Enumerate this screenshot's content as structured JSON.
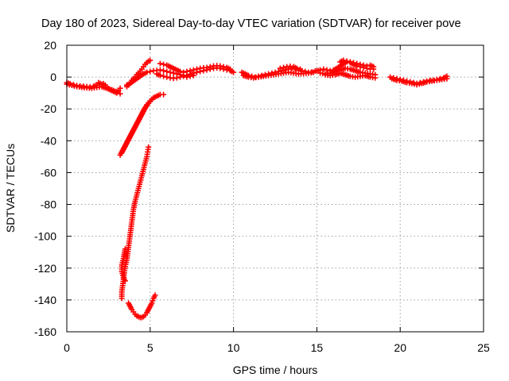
{
  "chart_data": {
    "type": "scatter",
    "title": "Day 180 of 2023, Sidereal Day-to-day VTEC variation (SDTVAR) for receiver pove",
    "xlabel": "GPS time / hours",
    "ylabel": "SDTVAR / TECUs",
    "xlim": [
      0,
      25
    ],
    "ylim": [
      -160,
      20
    ],
    "xticks": [
      "0",
      "5",
      "10",
      "15",
      "20",
      "25"
    ],
    "yticks": [
      "20",
      "0",
      "-20",
      "-40",
      "-60",
      "-80",
      "-100",
      "-120",
      "-140",
      "-160"
    ],
    "grid": true,
    "marker": "plus",
    "series_color": "#ff0000",
    "segments": [
      [
        [
          0.0,
          -3.5
        ],
        [
          0.2,
          -4.2
        ],
        [
          0.4,
          -4.8
        ],
        [
          0.6,
          -5.3
        ],
        [
          0.8,
          -5.6
        ],
        [
          1.0,
          -5.8
        ],
        [
          1.2,
          -6.0
        ],
        [
          1.4,
          -6.2
        ],
        [
          1.6,
          -5.8
        ],
        [
          1.8,
          -5.0
        ],
        [
          1.9,
          -3.5
        ],
        [
          2.0,
          -4.0
        ],
        [
          2.1,
          -4.5
        ],
        [
          2.2,
          -4.2
        ],
        [
          2.3,
          -5.0
        ],
        [
          2.4,
          -6.2
        ],
        [
          2.5,
          -7.2
        ],
        [
          2.6,
          -7.8
        ],
        [
          2.7,
          -8.0
        ],
        [
          2.8,
          -8.5
        ],
        [
          2.9,
          -9.0
        ],
        [
          3.0,
          -9.2
        ],
        [
          3.1,
          -8.5
        ],
        [
          3.2,
          -7.0
        ]
      ],
      [
        [
          0.0,
          -4.5
        ],
        [
          0.3,
          -5.2
        ],
        [
          0.6,
          -6.0
        ],
        [
          0.9,
          -6.4
        ],
        [
          1.2,
          -6.8
        ],
        [
          1.5,
          -7.0
        ],
        [
          1.8,
          -6.5
        ],
        [
          2.1,
          -6.0
        ],
        [
          2.4,
          -7.0
        ],
        [
          2.7,
          -8.5
        ],
        [
          3.0,
          -10.0
        ],
        [
          3.2,
          -10.5
        ]
      ],
      [
        [
          3.6,
          -6.0
        ],
        [
          3.7,
          -5.0
        ],
        [
          3.8,
          -3.5
        ],
        [
          3.9,
          -2.0
        ],
        [
          4.0,
          -1.0
        ],
        [
          4.1,
          0.0
        ],
        [
          4.2,
          1.5
        ],
        [
          4.3,
          2.5
        ],
        [
          4.5,
          5.0
        ],
        [
          4.6,
          6.5
        ],
        [
          4.7,
          8.0
        ],
        [
          4.8,
          9.0
        ],
        [
          4.9,
          10.0
        ],
        [
          5.0,
          10.5
        ]
      ],
      [
        [
          3.6,
          -5.0
        ],
        [
          3.8,
          -4.0
        ],
        [
          4.0,
          -2.5
        ],
        [
          4.2,
          -1.0
        ],
        [
          4.4,
          0.5
        ],
        [
          4.6,
          2.0
        ],
        [
          4.8,
          3.0
        ],
        [
          5.0,
          3.5
        ],
        [
          5.2,
          4.0
        ],
        [
          5.4,
          4.2
        ],
        [
          5.6,
          4.5
        ],
        [
          5.8,
          4.0
        ],
        [
          6.0,
          3.5
        ],
        [
          6.2,
          3.0
        ],
        [
          6.4,
          2.5
        ],
        [
          6.6,
          2.0
        ],
        [
          6.8,
          1.5
        ],
        [
          7.0,
          1.0
        ],
        [
          7.2,
          1.2
        ],
        [
          7.4,
          1.8
        ],
        [
          7.6,
          2.5
        ],
        [
          7.8,
          3.0
        ],
        [
          8.0,
          3.5
        ],
        [
          8.2,
          4.0
        ],
        [
          8.4,
          4.5
        ],
        [
          8.6,
          5.0
        ],
        [
          8.8,
          5.5
        ],
        [
          9.0,
          5.8
        ],
        [
          9.2,
          5.5
        ],
        [
          9.4,
          5.0
        ],
        [
          9.6,
          4.5
        ],
        [
          9.8,
          4.0
        ],
        [
          10.0,
          3.0
        ]
      ],
      [
        [
          5.6,
          8.5
        ],
        [
          5.8,
          8.0
        ],
        [
          6.0,
          7.5
        ],
        [
          6.2,
          6.5
        ],
        [
          6.4,
          5.5
        ],
        [
          6.6,
          4.5
        ],
        [
          6.8,
          3.5
        ],
        [
          7.0,
          3.0
        ],
        [
          7.2,
          3.5
        ],
        [
          7.4,
          4.0
        ],
        [
          7.6,
          4.5
        ],
        [
          7.8,
          5.0
        ],
        [
          8.0,
          5.5
        ],
        [
          8.2,
          5.8
        ],
        [
          8.4,
          6.0
        ],
        [
          8.6,
          6.5
        ],
        [
          8.8,
          7.0
        ],
        [
          9.0,
          7.2
        ],
        [
          9.2,
          7.0
        ],
        [
          9.4,
          6.5
        ],
        [
          9.6,
          6.0
        ],
        [
          9.8,
          5.0
        ]
      ],
      [
        [
          5.4,
          2.0
        ],
        [
          5.6,
          1.0
        ],
        [
          5.8,
          0.5
        ],
        [
          6.0,
          0.0
        ],
        [
          6.2,
          -0.5
        ],
        [
          6.4,
          -0.8
        ],
        [
          6.6,
          -0.5
        ],
        [
          6.8,
          0.0
        ],
        [
          7.0,
          0.5
        ],
        [
          7.2,
          0.0
        ],
        [
          7.4,
          0.5
        ],
        [
          7.6,
          1.0
        ]
      ],
      [
        [
          10.5,
          3.0
        ],
        [
          10.7,
          2.0
        ],
        [
          10.9,
          1.0
        ],
        [
          11.1,
          0.5
        ],
        [
          11.3,
          0.0
        ],
        [
          11.5,
          0.5
        ],
        [
          11.7,
          1.0
        ],
        [
          11.9,
          1.5
        ],
        [
          12.1,
          2.0
        ],
        [
          12.3,
          2.5
        ],
        [
          12.5,
          3.0
        ],
        [
          12.7,
          3.5
        ],
        [
          12.9,
          4.0
        ],
        [
          13.1,
          4.5
        ],
        [
          13.3,
          5.0
        ],
        [
          13.5,
          5.5
        ],
        [
          13.7,
          5.0
        ],
        [
          13.9,
          4.5
        ],
        [
          14.1,
          4.0
        ],
        [
          14.3,
          3.5
        ],
        [
          14.5,
          3.0
        ],
        [
          14.7,
          3.2
        ],
        [
          14.9,
          3.8
        ],
        [
          15.1,
          4.0
        ]
      ],
      [
        [
          10.6,
          1.0
        ],
        [
          10.9,
          0.0
        ],
        [
          11.2,
          -0.5
        ],
        [
          11.5,
          0.0
        ],
        [
          11.8,
          0.5
        ],
        [
          12.1,
          1.0
        ],
        [
          12.4,
          1.5
        ],
        [
          12.7,
          2.0
        ],
        [
          13.0,
          2.5
        ],
        [
          13.3,
          3.0
        ],
        [
          13.6,
          2.5
        ],
        [
          13.9,
          2.0
        ],
        [
          14.2,
          2.2
        ],
        [
          14.5,
          2.5
        ],
        [
          14.8,
          3.0
        ]
      ],
      [
        [
          12.8,
          5.5
        ],
        [
          13.0,
          6.0
        ],
        [
          13.2,
          6.5
        ],
        [
          13.4,
          6.8
        ],
        [
          13.6,
          6.5
        ],
        [
          13.8,
          5.5
        ],
        [
          14.0,
          5.0
        ]
      ],
      [
        [
          15.0,
          4.0
        ],
        [
          15.2,
          4.5
        ],
        [
          15.4,
          5.0
        ],
        [
          15.6,
          4.5
        ],
        [
          15.8,
          4.0
        ],
        [
          16.0,
          4.5
        ],
        [
          16.2,
          5.5
        ],
        [
          16.4,
          7.0
        ],
        [
          16.6,
          8.5
        ],
        [
          16.8,
          9.5
        ],
        [
          17.0,
          9.0
        ],
        [
          17.2,
          8.0
        ],
        [
          17.4,
          7.0
        ],
        [
          17.6,
          6.5
        ],
        [
          17.8,
          6.0
        ],
        [
          18.0,
          5.5
        ],
        [
          18.2,
          5.0
        ],
        [
          18.4,
          5.0
        ]
      ],
      [
        [
          15.2,
          2.5
        ],
        [
          15.5,
          2.0
        ],
        [
          15.8,
          2.5
        ],
        [
          16.1,
          3.5
        ],
        [
          16.4,
          4.5
        ],
        [
          16.7,
          5.5
        ],
        [
          17.0,
          5.0
        ],
        [
          17.3,
          4.0
        ],
        [
          17.6,
          3.0
        ],
        [
          17.9,
          2.5
        ],
        [
          18.2,
          2.0
        ],
        [
          18.5,
          1.5
        ]
      ],
      [
        [
          15.5,
          1.5
        ],
        [
          15.8,
          1.0
        ],
        [
          16.1,
          1.5
        ],
        [
          16.4,
          2.5
        ],
        [
          16.7,
          1.5
        ],
        [
          17.0,
          0.5
        ],
        [
          17.3,
          0.0
        ],
        [
          17.6,
          0.5
        ],
        [
          17.9,
          1.0
        ],
        [
          18.2,
          0.0
        ],
        [
          18.5,
          -0.5
        ]
      ],
      [
        [
          16.4,
          9.5
        ],
        [
          16.6,
          10.5
        ],
        [
          16.8,
          10.0
        ],
        [
          17.0,
          9.5
        ],
        [
          17.2,
          9.0
        ],
        [
          17.4,
          8.5
        ],
        [
          17.6,
          8.0
        ],
        [
          17.8,
          7.5
        ],
        [
          18.0,
          7.0
        ],
        [
          18.2,
          7.5
        ],
        [
          18.4,
          6.5
        ]
      ],
      [
        [
          19.4,
          0.0
        ],
        [
          19.6,
          -0.5
        ],
        [
          19.8,
          -1.0
        ],
        [
          20.0,
          -1.5
        ],
        [
          20.2,
          -2.0
        ],
        [
          20.4,
          -2.5
        ],
        [
          20.6,
          -3.0
        ],
        [
          20.8,
          -3.5
        ],
        [
          21.0,
          -4.0
        ],
        [
          21.2,
          -3.5
        ],
        [
          21.4,
          -3.0
        ],
        [
          21.6,
          -2.5
        ],
        [
          21.8,
          -2.0
        ],
        [
          22.0,
          -2.0
        ],
        [
          22.2,
          -1.5
        ],
        [
          22.4,
          -1.0
        ],
        [
          22.6,
          -0.5
        ],
        [
          22.8,
          0.5
        ]
      ],
      [
        [
          19.5,
          -1.0
        ],
        [
          19.8,
          -2.0
        ],
        [
          20.1,
          -2.5
        ],
        [
          20.4,
          -3.5
        ],
        [
          20.7,
          -4.0
        ],
        [
          21.0,
          -4.8
        ],
        [
          21.3,
          -4.0
        ],
        [
          21.6,
          -3.0
        ],
        [
          21.9,
          -2.5
        ],
        [
          22.2,
          -2.0
        ],
        [
          22.5,
          -1.5
        ],
        [
          22.8,
          -1.0
        ]
      ],
      [
        [
          3.2,
          -49.0
        ],
        [
          3.4,
          -45.0
        ],
        [
          3.6,
          -41.0
        ],
        [
          3.8,
          -37.0
        ],
        [
          4.0,
          -33.0
        ],
        [
          4.2,
          -29.0
        ],
        [
          4.4,
          -25.0
        ],
        [
          4.6,
          -21.0
        ],
        [
          4.8,
          -17.5
        ],
        [
          5.0,
          -15.0
        ],
        [
          5.2,
          -13.0
        ],
        [
          5.4,
          -12.0
        ],
        [
          5.6,
          -11.0
        ],
        [
          5.8,
          -11.0
        ]
      ],
      [
        [
          3.3,
          -47.5
        ],
        [
          3.5,
          -43.5
        ],
        [
          3.7,
          -39.5
        ],
        [
          3.9,
          -35.5
        ],
        [
          4.1,
          -31.5
        ],
        [
          4.3,
          -27.5
        ],
        [
          4.5,
          -23.5
        ],
        [
          4.7,
          -19.5
        ],
        [
          4.9,
          -16.5
        ],
        [
          5.1,
          -14.0
        ]
      ],
      [
        [
          4.9,
          -44.0
        ],
        [
          4.85,
          -47.0
        ],
        [
          4.8,
          -50.0
        ],
        [
          4.7,
          -54.0
        ],
        [
          4.6,
          -58.0
        ],
        [
          4.5,
          -62.0
        ],
        [
          4.4,
          -66.0
        ],
        [
          4.3,
          -70.0
        ],
        [
          4.2,
          -74.0
        ],
        [
          4.1,
          -78.0
        ],
        [
          4.0,
          -83.0
        ],
        [
          3.95,
          -87.0
        ],
        [
          3.9,
          -91.0
        ],
        [
          3.85,
          -95.0
        ],
        [
          3.8,
          -99.0
        ],
        [
          3.75,
          -103.0
        ],
        [
          3.7,
          -107.0
        ],
        [
          3.65,
          -111.0
        ],
        [
          3.6,
          -115.0
        ],
        [
          3.5,
          -119.0
        ],
        [
          3.45,
          -123.0
        ],
        [
          3.4,
          -127.0
        ],
        [
          3.35,
          -131.0
        ],
        [
          3.3,
          -135.0
        ],
        [
          3.3,
          -139.0
        ]
      ],
      [
        [
          3.5,
          -108.0
        ],
        [
          3.4,
          -114.0
        ],
        [
          3.3,
          -118.0
        ],
        [
          3.3,
          -122.0
        ],
        [
          3.4,
          -126.0
        ],
        [
          3.5,
          -128.0
        ]
      ],
      [
        [
          3.7,
          -142.0
        ],
        [
          3.8,
          -144.0
        ],
        [
          3.9,
          -146.0
        ],
        [
          4.0,
          -147.5
        ],
        [
          4.1,
          -149.0
        ],
        [
          4.2,
          -150.0
        ],
        [
          4.3,
          -150.5
        ],
        [
          4.4,
          -151.0
        ],
        [
          4.5,
          -151.0
        ],
        [
          4.6,
          -150.5
        ],
        [
          4.7,
          -149.5
        ],
        [
          4.8,
          -148.0
        ],
        [
          4.9,
          -146.0
        ],
        [
          5.0,
          -144.0
        ],
        [
          5.1,
          -142.0
        ],
        [
          5.2,
          -139.0
        ],
        [
          5.3,
          -137.0
        ]
      ]
    ]
  }
}
